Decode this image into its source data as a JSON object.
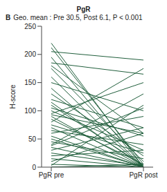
{
  "chart_data": {
    "type": "line",
    "panel": "B",
    "title": "PgR",
    "subtitle": "Geo. mean : Pre 30.5, Post 6.1, P < 0.001",
    "y_label": "H-score",
    "categories": [
      "PgR pre",
      "PgR post"
    ],
    "color": "#1f5e3b",
    "ylim": [
      0,
      250
    ],
    "yticks": [
      0,
      50,
      100,
      150,
      200,
      250
    ],
    "grid": false,
    "series": [
      {
        "values": [
          220,
          0
        ]
      },
      {
        "values": [
          212,
          5
        ]
      },
      {
        "values": [
          205,
          190
        ]
      },
      {
        "values": [
          195,
          0
        ]
      },
      {
        "values": [
          185,
          165
        ]
      },
      {
        "values": [
          180,
          60
        ]
      },
      {
        "values": [
          175,
          10
        ]
      },
      {
        "values": [
          160,
          0
        ]
      },
      {
        "values": [
          150,
          100
        ]
      },
      {
        "values": [
          140,
          0
        ]
      },
      {
        "values": [
          130,
          20
        ]
      },
      {
        "values": [
          120,
          70
        ]
      },
      {
        "values": [
          115,
          0
        ]
      },
      {
        "values": [
          110,
          3
        ]
      },
      {
        "values": [
          100,
          30
        ]
      },
      {
        "values": [
          95,
          150
        ]
      },
      {
        "values": [
          93,
          60
        ]
      },
      {
        "values": [
          90,
          0
        ]
      },
      {
        "values": [
          85,
          5
        ]
      },
      {
        "values": [
          80,
          175
        ]
      },
      {
        "values": [
          70,
          0
        ]
      },
      {
        "values": [
          65,
          40
        ]
      },
      {
        "values": [
          60,
          90
        ]
      },
      {
        "values": [
          50,
          0
        ]
      },
      {
        "values": [
          45,
          15
        ]
      },
      {
        "values": [
          40,
          130
        ]
      },
      {
        "values": [
          38,
          105
        ]
      },
      {
        "values": [
          35,
          0
        ]
      },
      {
        "values": [
          30,
          70
        ]
      },
      {
        "values": [
          25,
          2
        ]
      },
      {
        "values": [
          20,
          30
        ]
      },
      {
        "values": [
          15,
          0
        ]
      },
      {
        "values": [
          10,
          60
        ]
      },
      {
        "values": [
          5,
          0
        ]
      },
      {
        "values": [
          3,
          110
        ]
      },
      {
        "values": [
          0,
          0
        ]
      },
      {
        "values": [
          0,
          5
        ]
      },
      {
        "values": [
          55,
          0
        ]
      },
      {
        "values": [
          75,
          25
        ]
      },
      {
        "values": [
          105,
          55
        ]
      }
    ]
  }
}
